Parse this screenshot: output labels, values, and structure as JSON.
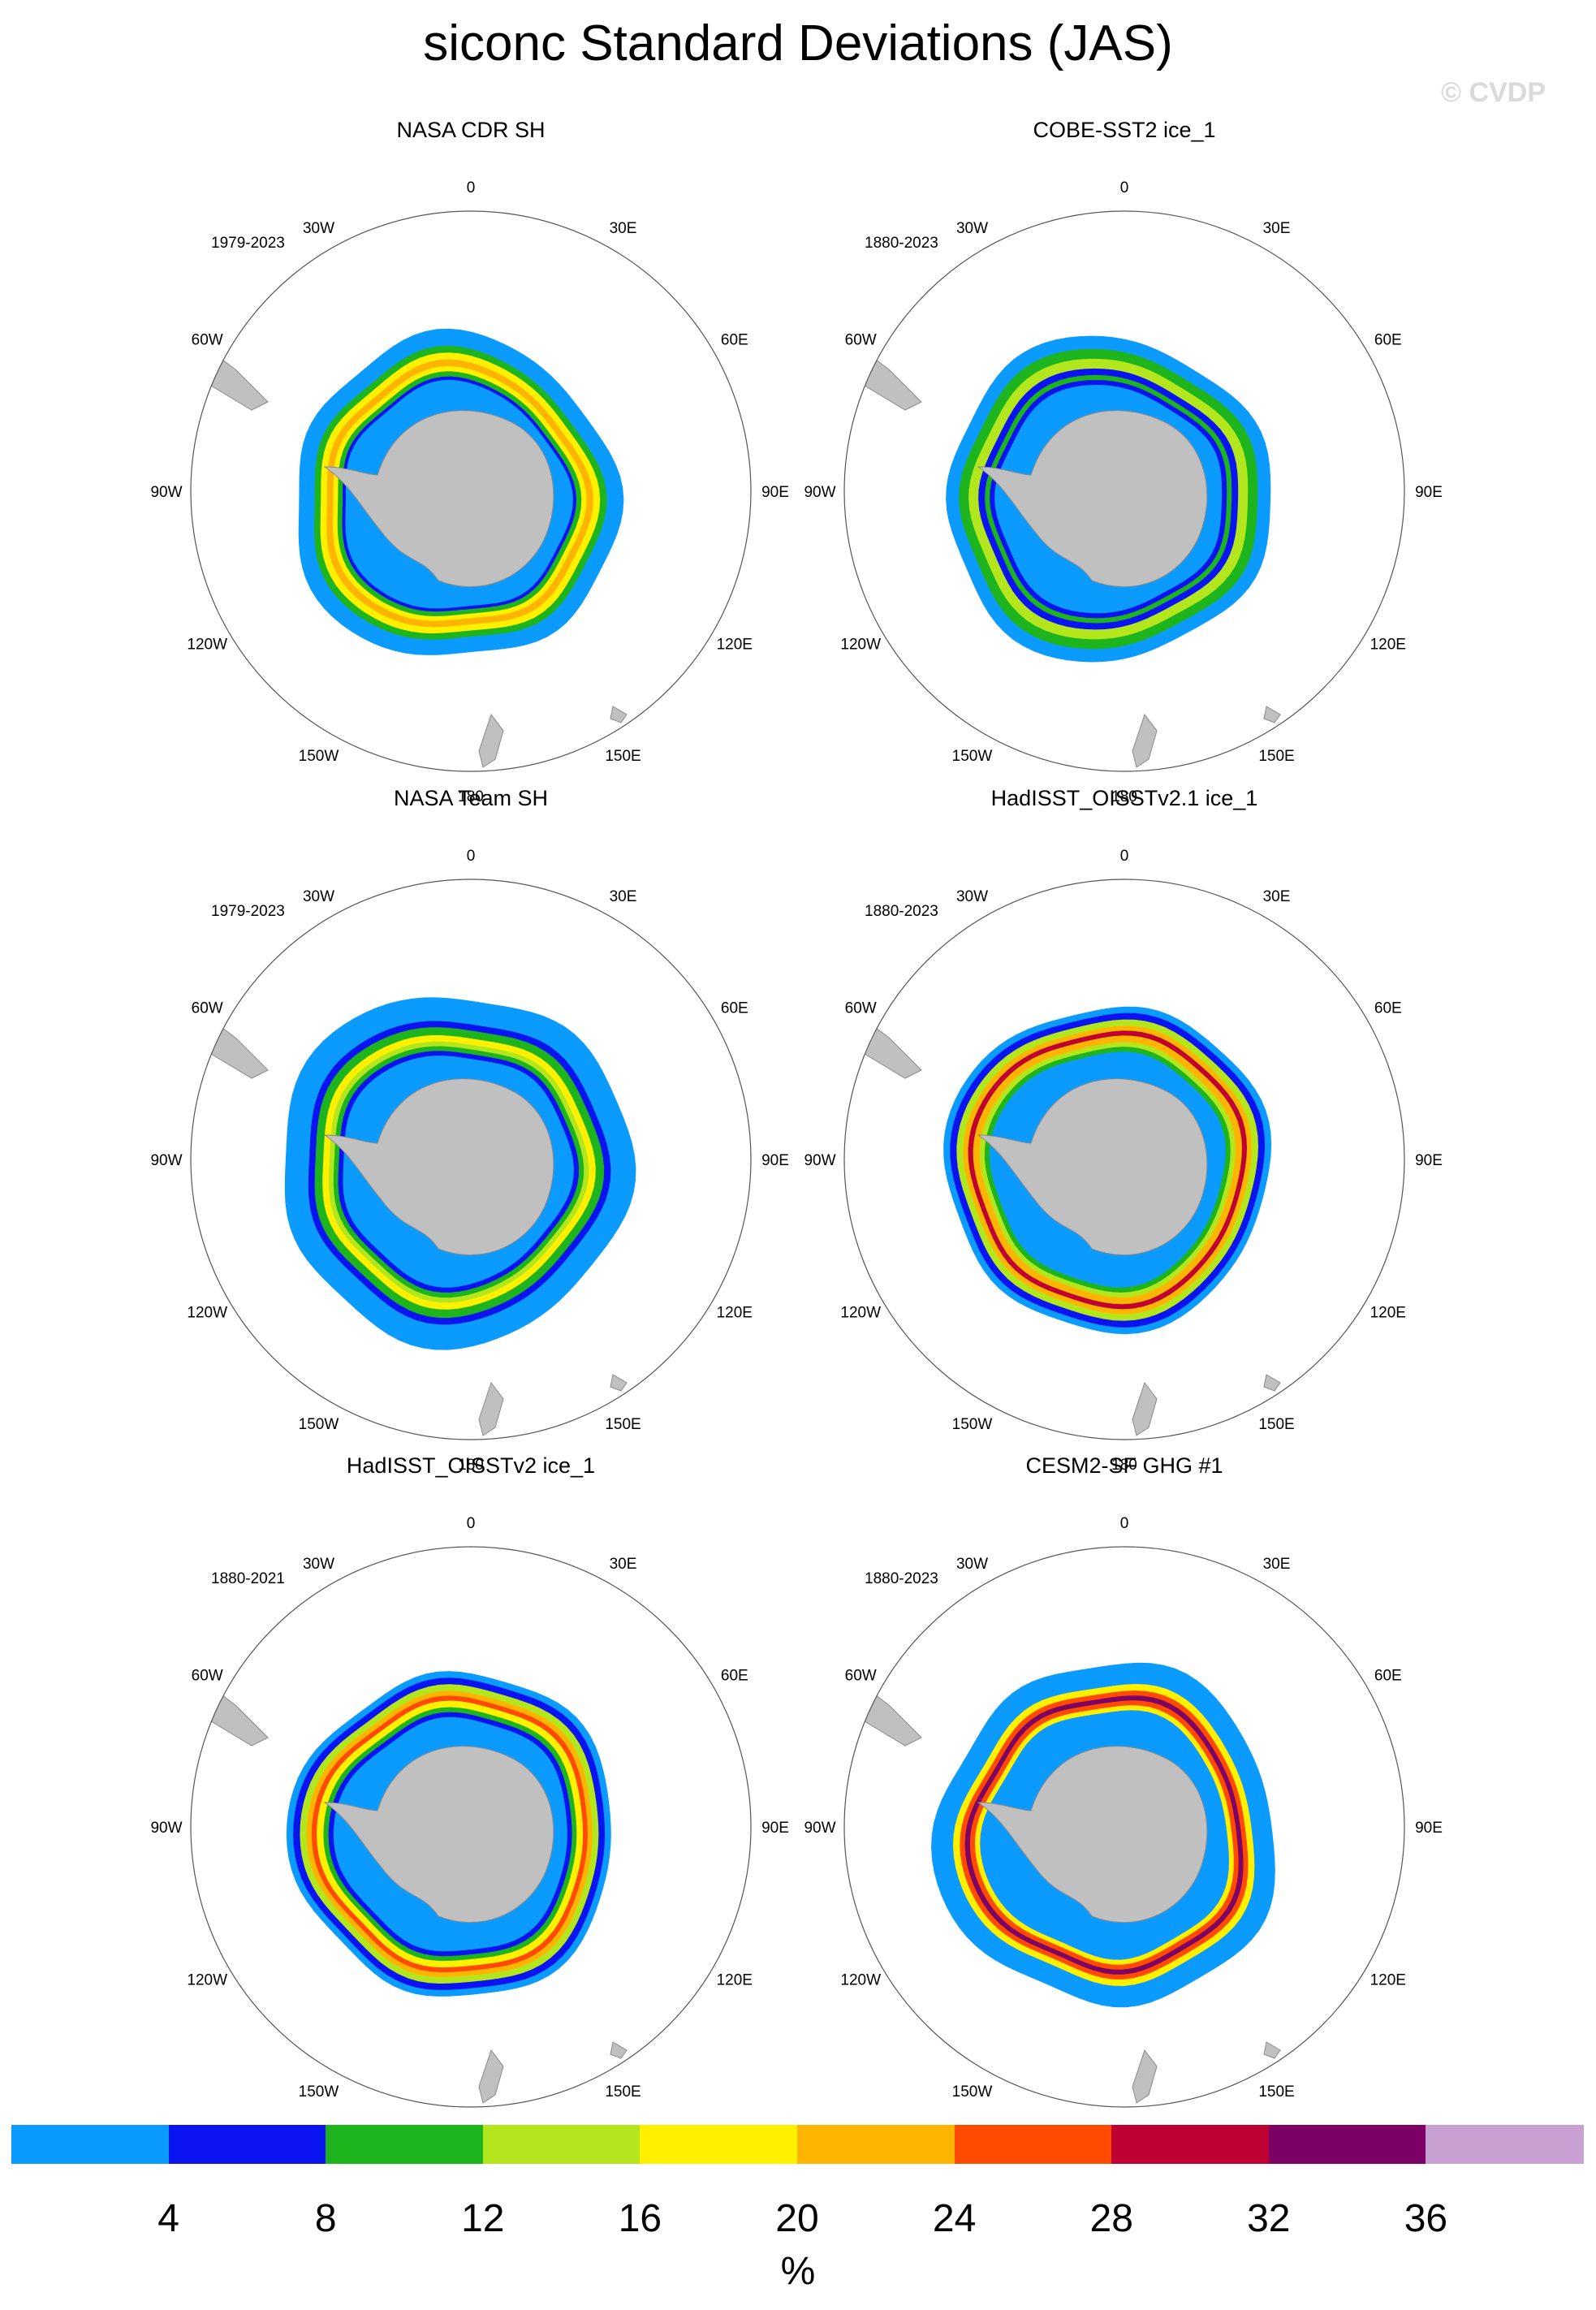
{
  "title": "siconc Standard Deviations (JAS)",
  "copyright": "© CVDP",
  "panels": [
    {
      "title": "NASA CDR SH",
      "period": "1979-2023",
      "style": "cdr"
    },
    {
      "title": "COBE-SST2 ice_1",
      "period": "1880-2023",
      "style": "cobe"
    },
    {
      "title": "NASA Team SH",
      "period": "1979-2023",
      "style": "team"
    },
    {
      "title": "HadISST_OISSTv2.1 ice_1",
      "period": "1880-2023",
      "style": "had21"
    },
    {
      "title": "HadISST_OISSTv2 ice_1",
      "period": "1880-2021",
      "style": "had2"
    },
    {
      "title": "CESM2-SF GHG #1",
      "period": "1880-2023",
      "style": "cesm"
    }
  ],
  "longitude_labels": [
    "0",
    "30E",
    "60E",
    "90E",
    "120E",
    "150E",
    "180",
    "150W",
    "120W",
    "90W",
    "60W",
    "30W"
  ],
  "colorbar": {
    "unit": "%",
    "tick_labels": [
      "4",
      "8",
      "12",
      "16",
      "20",
      "24",
      "28",
      "32",
      "36"
    ],
    "colors": [
      "#0b9bff",
      "#0a14f0",
      "#1eb41e",
      "#b4e61e",
      "#fff000",
      "#ffb400",
      "#ff4a00",
      "#be0032",
      "#7d0064",
      "#c8a0d2"
    ]
  }
}
